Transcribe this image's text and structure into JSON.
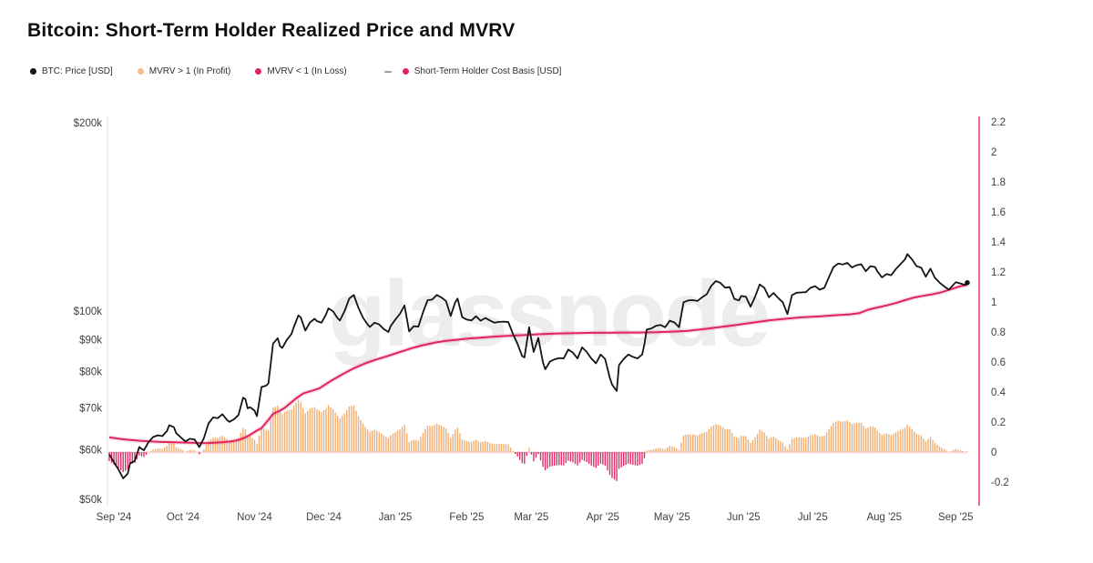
{
  "page": {
    "title": "Bitcoin: Short-Term Holder Realized Price and MVRV",
    "watermark": "glassnode",
    "background": "#ffffff"
  },
  "legend": {
    "items": [
      {
        "marker": "dot",
        "color": "#141414",
        "label": "BTC: Price [USD]"
      },
      {
        "marker": "dot",
        "color": "#f8bd85",
        "label": "MVRV > 1 (In Profit)"
      },
      {
        "marker": "dot",
        "color": "#e0245e",
        "label": "MVRV < 1 (In Loss)"
      },
      {
        "marker": "dash",
        "color": "#9aa0a6",
        "label": "-"
      },
      {
        "marker": "dot",
        "color": "#e0245e",
        "label": "Short-Term Holder Cost Basis [USD]"
      }
    ]
  },
  "chart_data": {
    "type": "mixed",
    "title": "Bitcoin: Short-Term Holder Realized Price and MVRV",
    "watermark": "glassnode",
    "epoch_day0": "2024-09-01",
    "x_axis": {
      "tick_labels": [
        "Sep '24",
        "Oct '24",
        "Nov '24",
        "Dec '24",
        "Jan '25",
        "Feb '25",
        "Mar '25",
        "Apr '25",
        "May '25",
        "Jun '25",
        "Jul '25",
        "Aug '25",
        "Sep '25"
      ],
      "tick_days": [
        0,
        30,
        61,
        91,
        122,
        153,
        181,
        212,
        242,
        273,
        303,
        334,
        365
      ],
      "domain_days": [
        0,
        373
      ]
    },
    "y_left_axis": {
      "scale": "log",
      "unit": "USD",
      "tick_labels": [
        "$200k",
        "$100k",
        "$90k",
        "$80k",
        "$70k",
        "$60k",
        "$50k"
      ],
      "tick_values_kusd": [
        200,
        100,
        90,
        80,
        70,
        60,
        50
      ],
      "axis_color": "#dcdcdc"
    },
    "y_right_axis": {
      "scale": "linear",
      "tick_labels": [
        "2.2",
        "2",
        "1.8",
        "1.6",
        "1.4",
        "1.2",
        "1",
        "0.8",
        "0.6",
        "0.4",
        "0.2",
        "0",
        "-0.2"
      ],
      "tick_values": [
        2.2,
        2.0,
        1.8,
        1.6,
        1.4,
        1.2,
        1.0,
        0.8,
        0.6,
        0.4,
        0.2,
        0.0,
        -0.2
      ],
      "axis_color": "#e0245e",
      "represents": "STH-MVRV ratio axis; bars plot MVRV deviation from 1"
    },
    "series": [
      {
        "name": "BTC: Price [USD]",
        "type": "line",
        "axis": "left",
        "color": "#141414",
        "unit": "kUSD",
        "end_marker": true,
        "points": [
          [
            0,
            59.0
          ],
          [
            2,
            57.3
          ],
          [
            4,
            55.8
          ],
          [
            6,
            54.0
          ],
          [
            8,
            55.0
          ],
          [
            9,
            57.1
          ],
          [
            11,
            57.6
          ],
          [
            13,
            60.6
          ],
          [
            15,
            59.9
          ],
          [
            17,
            61.7
          ],
          [
            19,
            62.9
          ],
          [
            21,
            63.3
          ],
          [
            23,
            63.1
          ],
          [
            25,
            64.3
          ],
          [
            26,
            65.7
          ],
          [
            28,
            65.2
          ],
          [
            29,
            63.8
          ],
          [
            31,
            62.8
          ],
          [
            33,
            61.9
          ],
          [
            35,
            62.5
          ],
          [
            37,
            62.3
          ],
          [
            39,
            60.6
          ],
          [
            41,
            62.6
          ],
          [
            43,
            66.1
          ],
          [
            45,
            67.6
          ],
          [
            47,
            67.4
          ],
          [
            49,
            68.4
          ],
          [
            51,
            67.0
          ],
          [
            52,
            66.5
          ],
          [
            54,
            67.1
          ],
          [
            56,
            68.2
          ],
          [
            58,
            72.7
          ],
          [
            59,
            72.3
          ],
          [
            60,
            69.9
          ],
          [
            61,
            70.2
          ],
          [
            63,
            69.3
          ],
          [
            64,
            67.9
          ],
          [
            66,
            75.6
          ],
          [
            68,
            76.0
          ],
          [
            69,
            76.6
          ],
          [
            71,
            88.7
          ],
          [
            73,
            90.5
          ],
          [
            74,
            87.9
          ],
          [
            75,
            87.3
          ],
          [
            77,
            90.0
          ],
          [
            79,
            91.9
          ],
          [
            80,
            94.3
          ],
          [
            82,
            98.4
          ],
          [
            83,
            97.7
          ],
          [
            85,
            93.1
          ],
          [
            87,
            95.9
          ],
          [
            89,
            97.2
          ],
          [
            90,
            96.4
          ],
          [
            92,
            95.8
          ],
          [
            94,
            98.8
          ],
          [
            95,
            101.0
          ],
          [
            97,
            99.9
          ],
          [
            99,
            97.4
          ],
          [
            100,
            96.6
          ],
          [
            102,
            100.0
          ],
          [
            104,
            104.7
          ],
          [
            106,
            106.1
          ],
          [
            108,
            101.2
          ],
          [
            110,
            97.6
          ],
          [
            112,
            95.2
          ],
          [
            113,
            94.3
          ],
          [
            115,
            95.8
          ],
          [
            117,
            95.2
          ],
          [
            119,
            93.6
          ],
          [
            121,
            92.6
          ],
          [
            122,
            94.6
          ],
          [
            124,
            96.9
          ],
          [
            126,
            99.0
          ],
          [
            128,
            102.1
          ],
          [
            130,
            92.8
          ],
          [
            132,
            94.6
          ],
          [
            134,
            94.4
          ],
          [
            136,
            99.5
          ],
          [
            138,
            104.1
          ],
          [
            140,
            104.3
          ],
          [
            142,
            106.1
          ],
          [
            144,
            105.1
          ],
          [
            146,
            103.7
          ],
          [
            148,
            98.2
          ],
          [
            150,
            103.3
          ],
          [
            151,
            104.7
          ],
          [
            153,
            97.8
          ],
          [
            155,
            96.9
          ],
          [
            157,
            96.6
          ],
          [
            159,
            98.1
          ],
          [
            161,
            96.5
          ],
          [
            163,
            97.5
          ],
          [
            165,
            96.6
          ],
          [
            167,
            95.8
          ],
          [
            169,
            96.1
          ],
          [
            171,
            96.2
          ],
          [
            173,
            96.0
          ],
          [
            175,
            92.0
          ],
          [
            177,
            88.6
          ],
          [
            179,
            84.7
          ],
          [
            180,
            84.3
          ],
          [
            182,
            94.2
          ],
          [
            184,
            86.0
          ],
          [
            186,
            90.6
          ],
          [
            188,
            82.8
          ],
          [
            189,
            80.7
          ],
          [
            191,
            83.0
          ],
          [
            193,
            83.7
          ],
          [
            195,
            84.1
          ],
          [
            197,
            84.0
          ],
          [
            199,
            86.8
          ],
          [
            201,
            85.8
          ],
          [
            203,
            84.0
          ],
          [
            205,
            87.5
          ],
          [
            207,
            86.0
          ],
          [
            209,
            84.0
          ],
          [
            211,
            82.5
          ],
          [
            213,
            85.2
          ],
          [
            215,
            83.8
          ],
          [
            217,
            78.2
          ],
          [
            218,
            76.3
          ],
          [
            220,
            74.5
          ],
          [
            221,
            82.0
          ],
          [
            223,
            83.8
          ],
          [
            225,
            85.2
          ],
          [
            227,
            84.5
          ],
          [
            229,
            84.0
          ],
          [
            231,
            85.2
          ],
          [
            232,
            88.5
          ],
          [
            233,
            93.4
          ],
          [
            235,
            93.8
          ],
          [
            237,
            94.7
          ],
          [
            239,
            95.0
          ],
          [
            241,
            94.2
          ],
          [
            243,
            96.5
          ],
          [
            245,
            95.9
          ],
          [
            247,
            94.2
          ],
          [
            249,
            103.3
          ],
          [
            251,
            104.0
          ],
          [
            253,
            104.1
          ],
          [
            255,
            103.8
          ],
          [
            257,
            105.2
          ],
          [
            259,
            106.4
          ],
          [
            261,
            109.7
          ],
          [
            263,
            111.7
          ],
          [
            265,
            110.9
          ],
          [
            267,
            109.0
          ],
          [
            269,
            109.2
          ],
          [
            271,
            104.6
          ],
          [
            273,
            104.0
          ],
          [
            274,
            105.7
          ],
          [
            276,
            105.4
          ],
          [
            278,
            101.6
          ],
          [
            280,
            105.4
          ],
          [
            282,
            110.3
          ],
          [
            284,
            108.9
          ],
          [
            286,
            105.2
          ],
          [
            288,
            106.9
          ],
          [
            290,
            104.9
          ],
          [
            292,
            103.3
          ],
          [
            294,
            98.9
          ],
          [
            296,
            106.0
          ],
          [
            298,
            107.0
          ],
          [
            300,
            107.1
          ],
          [
            302,
            107.2
          ],
          [
            304,
            108.9
          ],
          [
            306,
            109.6
          ],
          [
            308,
            108.2
          ],
          [
            310,
            108.9
          ],
          [
            312,
            113.3
          ],
          [
            314,
            117.6
          ],
          [
            316,
            119.1
          ],
          [
            318,
            118.7
          ],
          [
            320,
            119.4
          ],
          [
            322,
            117.4
          ],
          [
            324,
            118.4
          ],
          [
            326,
            118.8
          ],
          [
            328,
            115.8
          ],
          [
            330,
            118.0
          ],
          [
            332,
            117.6
          ],
          [
            333,
            115.8
          ],
          [
            335,
            113.2
          ],
          [
            337,
            114.6
          ],
          [
            339,
            114.1
          ],
          [
            341,
            116.7
          ],
          [
            343,
            118.8
          ],
          [
            345,
            121.0
          ],
          [
            346,
            123.3
          ],
          [
            348,
            121.0
          ],
          [
            350,
            118.0
          ],
          [
            352,
            117.3
          ],
          [
            354,
            113.5
          ],
          [
            356,
            116.9
          ],
          [
            358,
            113.0
          ],
          [
            360,
            111.0
          ],
          [
            362,
            109.5
          ],
          [
            364,
            108.2
          ],
          [
            365,
            109.2
          ],
          [
            367,
            111.2
          ],
          [
            369,
            110.7
          ],
          [
            371,
            110.1
          ],
          [
            372,
            111.0
          ]
        ]
      },
      {
        "name": "Short-Term Holder Cost Basis [USD]",
        "type": "line",
        "axis": "left",
        "color": "#e0245e",
        "unit": "kUSD",
        "end_marker": false,
        "points": [
          [
            0,
            62.8
          ],
          [
            7,
            62.3
          ],
          [
            14,
            62.0
          ],
          [
            21,
            61.8
          ],
          [
            28,
            61.7
          ],
          [
            35,
            61.6
          ],
          [
            42,
            61.5
          ],
          [
            49,
            61.7
          ],
          [
            53,
            61.9
          ],
          [
            56,
            62.2
          ],
          [
            59,
            62.8
          ],
          [
            61,
            63.4
          ],
          [
            64,
            64.4
          ],
          [
            66,
            65.0
          ],
          [
            69,
            67.0
          ],
          [
            71,
            68.5
          ],
          [
            74,
            69.3
          ],
          [
            76,
            70.0
          ],
          [
            79,
            71.5
          ],
          [
            81,
            72.5
          ],
          [
            84,
            73.8
          ],
          [
            86,
            74.2
          ],
          [
            89,
            74.8
          ],
          [
            91,
            75.2
          ],
          [
            96,
            77.3
          ],
          [
            101,
            79.2
          ],
          [
            106,
            81.0
          ],
          [
            111,
            82.5
          ],
          [
            116,
            83.7
          ],
          [
            121,
            84.8
          ],
          [
            126,
            86.0
          ],
          [
            131,
            87.2
          ],
          [
            136,
            88.2
          ],
          [
            141,
            89.0
          ],
          [
            146,
            89.6
          ],
          [
            151,
            90.0
          ],
          [
            156,
            90.4
          ],
          [
            161,
            90.7
          ],
          [
            166,
            91.0
          ],
          [
            171,
            91.2
          ],
          [
            176,
            91.4
          ],
          [
            181,
            91.6
          ],
          [
            188,
            91.9
          ],
          [
            195,
            92.1
          ],
          [
            202,
            92.2
          ],
          [
            209,
            92.3
          ],
          [
            216,
            92.3
          ],
          [
            223,
            92.4
          ],
          [
            230,
            92.4
          ],
          [
            237,
            92.5
          ],
          [
            244,
            92.7
          ],
          [
            251,
            93.0
          ],
          [
            258,
            93.6
          ],
          [
            265,
            94.3
          ],
          [
            272,
            95.0
          ],
          [
            279,
            95.8
          ],
          [
            286,
            96.6
          ],
          [
            293,
            97.2
          ],
          [
            300,
            97.7
          ],
          [
            307,
            98.0
          ],
          [
            314,
            98.4
          ],
          [
            321,
            98.8
          ],
          [
            325,
            99.2
          ],
          [
            329,
            100.5
          ],
          [
            333,
            101.3
          ],
          [
            337,
            102.1
          ],
          [
            341,
            103.0
          ],
          [
            345,
            104.1
          ],
          [
            349,
            105.1
          ],
          [
            353,
            105.8
          ],
          [
            357,
            106.4
          ],
          [
            361,
            107.2
          ],
          [
            365,
            108.4
          ],
          [
            368,
            109.3
          ],
          [
            372,
            110.2
          ]
        ]
      },
      {
        "name": "STH-MVRV deviation (MVRV - 1)",
        "type": "bar",
        "axis": "right",
        "derived": "daily value = interpolated Price / interpolated Cost Basis - 1; orange above 0, pink below 0",
        "positive_color": "#f0a35e",
        "positive_label": "MVRV > 1 (In Profit)",
        "negative_color": "#dc1e5e",
        "negative_label": "MVRV < 1 (In Loss)",
        "zero_line_color": "#f6cfda"
      }
    ]
  }
}
